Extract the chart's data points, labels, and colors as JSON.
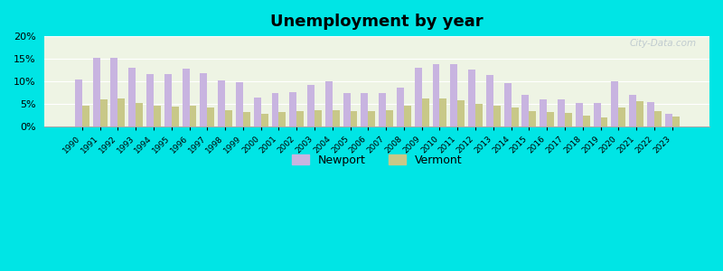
{
  "title": "Unemployment by year",
  "years": [
    1990,
    1991,
    1992,
    1993,
    1994,
    1995,
    1996,
    1997,
    1998,
    1999,
    2000,
    2001,
    2002,
    2003,
    2004,
    2005,
    2006,
    2007,
    2008,
    2009,
    2010,
    2011,
    2012,
    2013,
    2014,
    2015,
    2016,
    2017,
    2018,
    2019,
    2020,
    2021,
    2022,
    2023
  ],
  "newport": [
    10.5,
    15.2,
    15.2,
    13.1,
    11.6,
    11.7,
    12.9,
    11.8,
    10.3,
    9.8,
    6.5,
    7.5,
    7.7,
    9.3,
    10.0,
    7.5,
    7.5,
    7.5,
    8.7,
    13.0,
    13.9,
    13.9,
    12.6,
    11.4,
    9.7,
    7.1,
    6.1,
    6.1,
    5.2,
    5.2,
    10.0,
    7.0,
    5.5,
    2.8
  ],
  "vermont": [
    4.7,
    6.0,
    6.2,
    5.3,
    4.6,
    4.4,
    4.6,
    4.3,
    3.6,
    3.2,
    2.8,
    3.2,
    3.5,
    3.7,
    3.7,
    3.5,
    3.5,
    3.7,
    4.6,
    6.2,
    6.2,
    5.8,
    5.0,
    4.6,
    4.2,
    3.5,
    3.2,
    3.0,
    2.5,
    2.1,
    4.3,
    5.7,
    3.5,
    2.3
  ],
  "bar_color_newport": "#c8b4e0",
  "bar_color_vermont": "#c8c888",
  "background_color": "#00e5e5",
  "plot_bg_color": "#eef4e4",
  "ylim": [
    0,
    20
  ],
  "yticks": [
    0,
    5,
    10,
    15,
    20
  ],
  "legend_newport": "Newport",
  "legend_vermont": "Vermont",
  "bar_width": 0.4
}
